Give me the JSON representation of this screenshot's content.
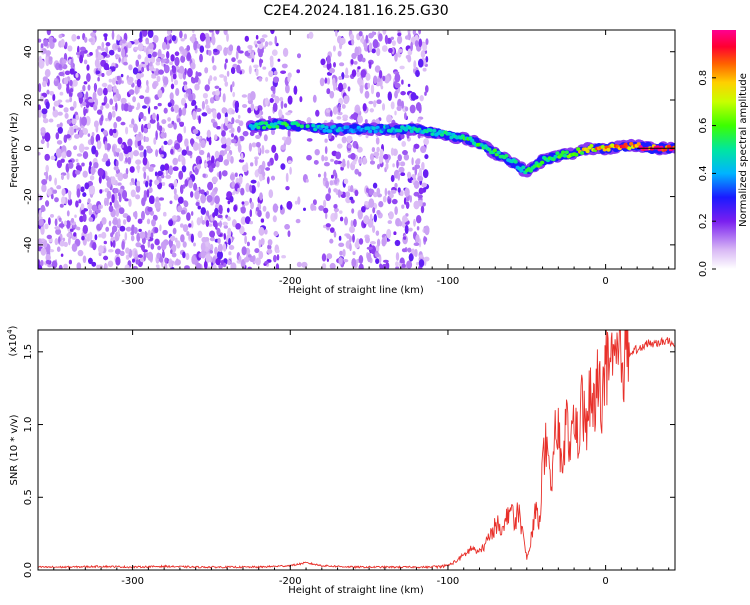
{
  "title": "C2E4.2024.181.16.25.G30",
  "chart_data": [
    {
      "type": "heatmap",
      "xlabel": "Height of straight line (km)",
      "ylabel": "Frequency (Hz)",
      "xlim": [
        -360,
        44
      ],
      "ylim": [
        -50,
        49
      ],
      "xticks": [
        -300,
        -200,
        -100,
        0
      ],
      "yticks": [
        -40,
        -20,
        0,
        20,
        40
      ],
      "colorbar": {
        "label": "Normalized spectral amplitude",
        "range": [
          0,
          1
        ],
        "ticks": [
          "0.0",
          "0.2",
          "0.4",
          "0.6",
          "0.8"
        ],
        "tick_values": [
          0,
          0.2,
          0.4,
          0.6,
          0.8
        ]
      },
      "signal_track": {
        "x": [
          -225,
          -210,
          -190,
          -175,
          -160,
          -140,
          -120,
          -105,
          -90,
          -80,
          -70,
          -60,
          -50,
          -40,
          -30,
          -20,
          -10,
          0,
          10,
          20,
          30,
          44
        ],
        "freq": [
          9,
          10,
          9,
          8,
          8,
          8,
          8,
          6,
          4,
          2,
          -2,
          -5,
          -10,
          -5,
          -3,
          -2,
          0,
          0,
          1,
          1,
          0,
          0
        ],
        "amplitude": [
          0.5,
          0.55,
          0.5,
          0.45,
          0.4,
          0.45,
          0.5,
          0.5,
          0.55,
          0.55,
          0.55,
          0.5,
          0.55,
          0.6,
          0.6,
          0.7,
          0.8,
          0.85,
          0.9,
          0.95,
          1.0,
          1.0
        ]
      }
    },
    {
      "type": "line",
      "xlabel": "Height of straight line (km)",
      "ylabel": "SNR (10 * v/v)",
      "multiplier": "(x10^4)",
      "xlim": [
        -360,
        44
      ],
      "ylim": [
        0,
        1.65
      ],
      "xticks": [
        -300,
        -200,
        -100,
        0
      ],
      "yticks": [
        0.0,
        0.5,
        1.0,
        1.5
      ],
      "ytick_labels": [
        "0.0",
        "0.5",
        "1.0",
        "1.5"
      ],
      "color": "#e8302a",
      "series": [
        {
          "x": [
            -360,
            -340,
            -320,
            -300,
            -280,
            -260,
            -240,
            -220,
            -200,
            -190,
            -180,
            -160,
            -140,
            -120,
            -110,
            -100,
            -95,
            -90,
            -85,
            -80,
            -75,
            -70,
            -68,
            -65,
            -62,
            -60,
            -58,
            -55,
            -52,
            -50,
            -48,
            -45,
            -42,
            -40,
            -38,
            -35,
            -32,
            -30,
            -28,
            -25,
            -22,
            -20,
            -18,
            -15,
            -12,
            -10,
            -8,
            -5,
            -2,
            0,
            3,
            6,
            10,
            15,
            20,
            25,
            30,
            35,
            40,
            44
          ],
          "y": [
            0.02,
            0.02,
            0.025,
            0.02,
            0.025,
            0.02,
            0.02,
            0.02,
            0.03,
            0.05,
            0.03,
            0.02,
            0.02,
            0.02,
            0.02,
            0.03,
            0.06,
            0.1,
            0.15,
            0.12,
            0.2,
            0.3,
            0.35,
            0.25,
            0.4,
            0.45,
            0.3,
            0.42,
            0.2,
            0.08,
            0.15,
            0.4,
            0.35,
            0.7,
            0.85,
            0.55,
            0.9,
            0.95,
            0.7,
            1.0,
            0.85,
            1.1,
            0.9,
            1.15,
            0.95,
            1.2,
            1.05,
            1.28,
            1.2,
            1.38,
            1.32,
            1.42,
            1.45,
            1.5,
            1.52,
            1.55,
            1.56,
            1.57,
            1.58,
            1.55
          ]
        }
      ]
    }
  ]
}
